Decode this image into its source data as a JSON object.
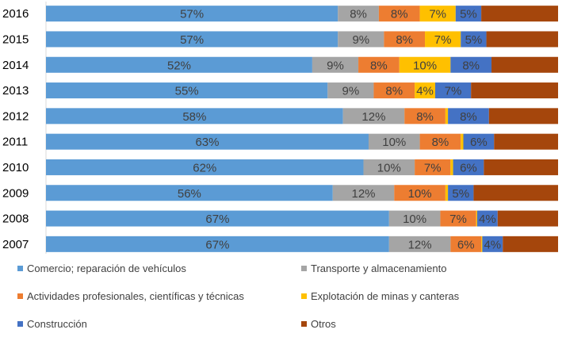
{
  "chart_data": {
    "type": "bar",
    "orientation": "horizontal",
    "stacked": "percent",
    "grid": false,
    "legend_position": "bottom",
    "categories": [
      "2016",
      "2015",
      "2014",
      "2013",
      "2012",
      "2011",
      "2010",
      "2009",
      "2008",
      "2007"
    ],
    "series": [
      {
        "name": "Comercio; reparación de vehículos",
        "color": "#5B9BD5",
        "values": [
          57,
          57,
          52,
          55,
          58,
          63,
          62,
          56,
          67,
          67
        ],
        "labels": [
          "57%",
          "57%",
          "52%",
          "55%",
          "58%",
          "63%",
          "62%",
          "56%",
          "67%",
          "67%"
        ]
      },
      {
        "name": "Transporte y almacenamiento",
        "color": "#A5A5A5",
        "values": [
          8,
          9,
          9,
          9,
          12,
          10,
          10,
          12,
          10,
          12
        ],
        "labels": [
          "8%",
          "9%",
          "9%",
          "9%",
          "12%",
          "10%",
          "10%",
          "12%",
          "10%",
          "12%"
        ]
      },
      {
        "name": "Actividades profesionales, científicas y técnicas",
        "color": "#ED7D31",
        "values": [
          8,
          8,
          8,
          8,
          8,
          8,
          7,
          10,
          7,
          6
        ],
        "labels": [
          "8%",
          "8%",
          "8%",
          "8%",
          "8%",
          "8%",
          "7%",
          "10%",
          "7%",
          "6%"
        ]
      },
      {
        "name": "Explotación de minas y canteras",
        "color": "#FFC000",
        "values": [
          7,
          7,
          10,
          4,
          0.5,
          0.5,
          0.5,
          0.5,
          0.2,
          0.2
        ],
        "labels": [
          "7%",
          "7%",
          "10%",
          "4%",
          "",
          "",
          "",
          "",
          "",
          ""
        ]
      },
      {
        "name": "Construcción",
        "color": "#4472C4",
        "values": [
          5,
          5,
          8,
          7,
          8,
          6,
          6,
          5,
          4,
          4
        ],
        "labels": [
          "5%",
          "5%",
          "8%",
          "7%",
          "8%",
          "6%",
          "6%",
          "5%",
          "4%",
          "4%"
        ]
      },
      {
        "name": "Otros",
        "color": "#A5460C",
        "values": [
          15,
          14,
          13,
          17,
          13.5,
          12.5,
          14.5,
          16.5,
          11.8,
          10.8
        ],
        "labels": [
          "",
          "",
          "",
          "",
          "",
          "",
          "",
          "",
          "",
          ""
        ]
      }
    ]
  }
}
